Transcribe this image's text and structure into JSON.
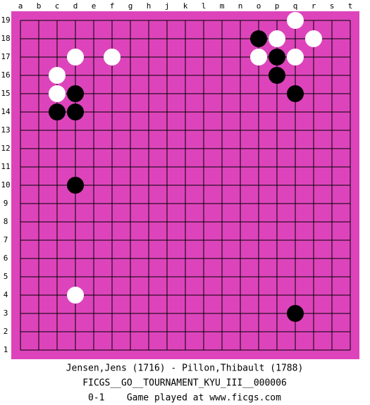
{
  "board": {
    "columns": [
      "a",
      "b",
      "c",
      "d",
      "e",
      "f",
      "g",
      "h",
      "j",
      "k",
      "l",
      "m",
      "n",
      "o",
      "p",
      "q",
      "r",
      "s",
      "t"
    ],
    "rows": [
      19,
      18,
      17,
      16,
      15,
      14,
      13,
      12,
      11,
      10,
      9,
      8,
      7,
      6,
      5,
      4,
      3,
      2,
      1
    ],
    "stones": [
      {
        "color": "black",
        "point": "o18"
      },
      {
        "color": "black",
        "point": "p17"
      },
      {
        "color": "black",
        "point": "p16"
      },
      {
        "color": "black",
        "point": "q15"
      },
      {
        "color": "black",
        "point": "d15"
      },
      {
        "color": "black",
        "point": "c14"
      },
      {
        "color": "black",
        "point": "d14"
      },
      {
        "color": "black",
        "point": "d10"
      },
      {
        "color": "black",
        "point": "q3"
      },
      {
        "color": "white",
        "point": "q19"
      },
      {
        "color": "white",
        "point": "p18"
      },
      {
        "color": "white",
        "point": "r18"
      },
      {
        "color": "white",
        "point": "o17"
      },
      {
        "color": "white",
        "point": "q17"
      },
      {
        "color": "white",
        "point": "d17"
      },
      {
        "color": "white",
        "point": "f17"
      },
      {
        "color": "white",
        "point": "c16"
      },
      {
        "color": "white",
        "point": "c15"
      },
      {
        "color": "white",
        "point": "d4"
      }
    ]
  },
  "footer": {
    "players": "Jensen,Jens (1716) - Pillon,Thibault (1788)",
    "event": "FICGS__GO__TOURNAMENT_KYU_III__000006",
    "result": "0-1    Game played at www.ficgs.com"
  }
}
